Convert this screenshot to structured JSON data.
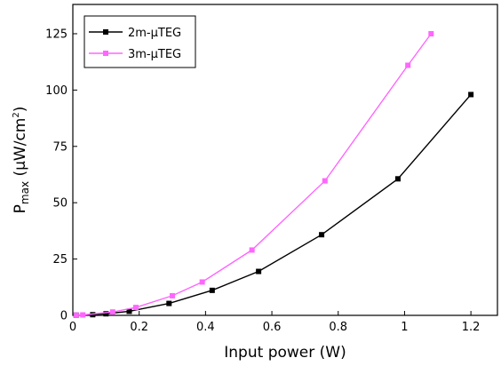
{
  "chart_data": {
    "type": "line",
    "xlabel": "Input power (W)",
    "ylabel_main": "P",
    "ylabel_sub": "max",
    "ylabel_units_pre": " (μW/cm",
    "ylabel_units_sup": "2",
    "ylabel_units_post": ")",
    "xlim": [
      0,
      1.28
    ],
    "ylim": [
      0,
      138
    ],
    "xticks": [
      0,
      0.2,
      0.4,
      0.6,
      0.8,
      1,
      1.2
    ],
    "xtick_labels": [
      "0",
      "0.2",
      "0.4",
      "0.6",
      "0.8",
      "1",
      "1.2"
    ],
    "yticks": [
      0,
      25,
      50,
      75,
      100,
      125
    ],
    "ytick_labels": [
      "0",
      "25",
      "50",
      "75",
      "100",
      "125"
    ],
    "grid": false,
    "legend_position": "top-left",
    "series": [
      {
        "name": "2m-µTEG",
        "color": "#000000",
        "marker": "square",
        "x": [
          0.01,
          0.06,
          0.1,
          0.17,
          0.29,
          0.42,
          0.56,
          0.75,
          0.98,
          1.2
        ],
        "y": [
          0.1,
          0.3,
          0.7,
          1.8,
          5.3,
          11.1,
          19.5,
          35.8,
          60.6,
          98
        ]
      },
      {
        "name": "3m-µTEG",
        "color": "#ff66ff",
        "marker": "square",
        "x": [
          0.01,
          0.03,
          0.12,
          0.19,
          0.3,
          0.39,
          0.54,
          0.76,
          1.01,
          1.08
        ],
        "y": [
          0.1,
          0.2,
          1.5,
          3.5,
          8.7,
          14.8,
          29,
          59.7,
          111,
          125
        ]
      }
    ]
  }
}
